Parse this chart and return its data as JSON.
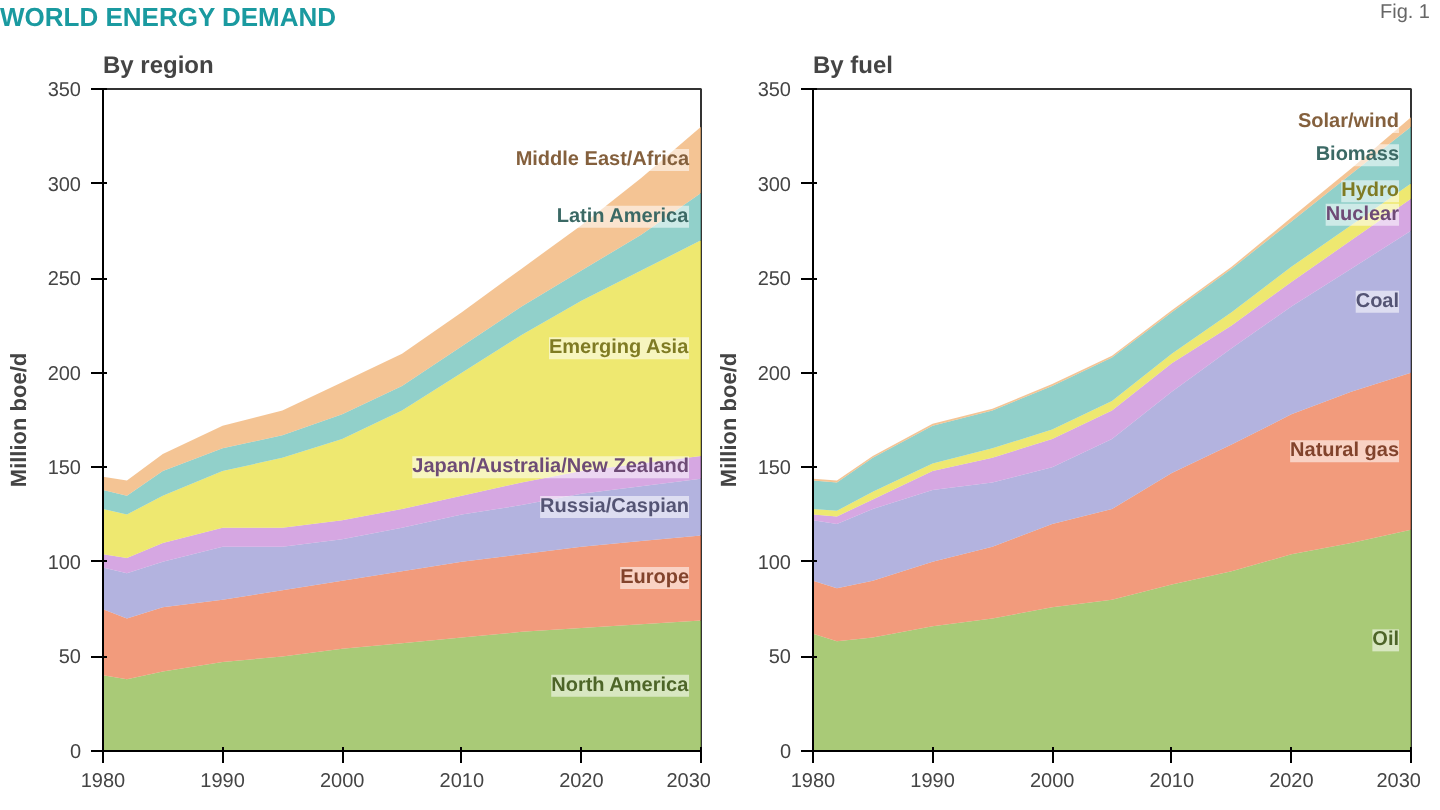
{
  "chart_data": [
    {
      "type": "area",
      "stacked": true,
      "title": "By region",
      "ylabel": "Million boe/d",
      "annotations": [
        "WORLD ENERGY DEMAND"
      ],
      "x": [
        1980,
        1982,
        1985,
        1990,
        1995,
        2000,
        2005,
        2010,
        2015,
        2020,
        2025,
        2030
      ],
      "xlim": [
        1980,
        2030
      ],
      "xticks": [
        1980,
        1990,
        2000,
        2010,
        2020,
        2030
      ],
      "ylim": [
        0,
        350
      ],
      "yticks": [
        0,
        50,
        100,
        150,
        200,
        250,
        300,
        350
      ],
      "grid": false,
      "legend": false,
      "series": [
        {
          "name": "North America",
          "color": "#8cb84a",
          "values": [
            40,
            38,
            42,
            47,
            50,
            54,
            57,
            60,
            63,
            65,
            67,
            69
          ]
        },
        {
          "name": "Europe",
          "color": "#ee7a50",
          "values": [
            35,
            32,
            34,
            33,
            35,
            36,
            38,
            40,
            41,
            43,
            44,
            45
          ]
        },
        {
          "name": "Russia/Caspian",
          "color": "#9a9ad4",
          "values": [
            22,
            24,
            24,
            28,
            23,
            22,
            23,
            25,
            26,
            28,
            29,
            30
          ]
        },
        {
          "name": "Japan/Australia/New Zealand",
          "color": "#c889d8",
          "values": [
            7,
            8,
            10,
            10,
            10,
            10,
            10,
            10,
            12,
            12,
            12,
            12
          ]
        },
        {
          "name": "Emerging Asia",
          "color": "#e8e040",
          "values": [
            24,
            23,
            25,
            30,
            37,
            43,
            52,
            65,
            78,
            90,
            102,
            114
          ]
        },
        {
          "name": "Latin America",
          "color": "#6cc0b8",
          "values": [
            10,
            10,
            13,
            12,
            12,
            13,
            13,
            14,
            15,
            16,
            19,
            25
          ]
        },
        {
          "name": "Middle East/Africa",
          "color": "#f0b070",
          "values": [
            7,
            8,
            9,
            12,
            13,
            17,
            17,
            18,
            20,
            24,
            30,
            35
          ]
        }
      ]
    },
    {
      "type": "area",
      "stacked": true,
      "title": "By fuel",
      "ylabel": "Million boe/d",
      "annotations": [
        "Fig. 1"
      ],
      "x": [
        1980,
        1982,
        1985,
        1990,
        1995,
        2000,
        2005,
        2010,
        2015,
        2020,
        2025,
        2030
      ],
      "xlim": [
        1980,
        2030
      ],
      "xticks": [
        1980,
        1990,
        2000,
        2010,
        2020,
        2030
      ],
      "ylim": [
        0,
        350
      ],
      "yticks": [
        0,
        50,
        100,
        150,
        200,
        250,
        300,
        350
      ],
      "grid": false,
      "legend": false,
      "series": [
        {
          "name": "Oil",
          "color": "#8cb84a",
          "values": [
            62,
            58,
            60,
            66,
            70,
            76,
            80,
            88,
            95,
            104,
            110,
            117
          ]
        },
        {
          "name": "Natural gas",
          "color": "#ee7a50",
          "values": [
            28,
            28,
            30,
            34,
            38,
            44,
            48,
            59,
            67,
            74,
            80,
            83
          ]
        },
        {
          "name": "Coal",
          "color": "#9a9ad4",
          "values": [
            32,
            34,
            38,
            38,
            34,
            30,
            37,
            43,
            51,
            57,
            65,
            75
          ]
        },
        {
          "name": "Nuclear",
          "color": "#c889d8",
          "values": [
            3,
            4,
            5,
            10,
            13,
            15,
            15,
            15,
            12,
            13,
            15,
            17
          ]
        },
        {
          "name": "Hydro",
          "color": "#e8e040",
          "values": [
            3,
            3,
            4,
            4,
            5,
            5,
            5,
            5,
            7,
            8,
            8,
            8
          ]
        },
        {
          "name": "Biomass",
          "color": "#6cc0b8",
          "values": [
            15,
            15,
            18,
            20,
            20,
            23,
            23,
            22,
            23,
            24,
            27,
            30
          ]
        },
        {
          "name": "Solar/wind",
          "color": "#f0b070",
          "values": [
            1,
            1,
            1,
            1,
            1,
            1,
            1,
            1,
            1,
            2,
            3,
            5
          ]
        }
      ]
    }
  ]
}
